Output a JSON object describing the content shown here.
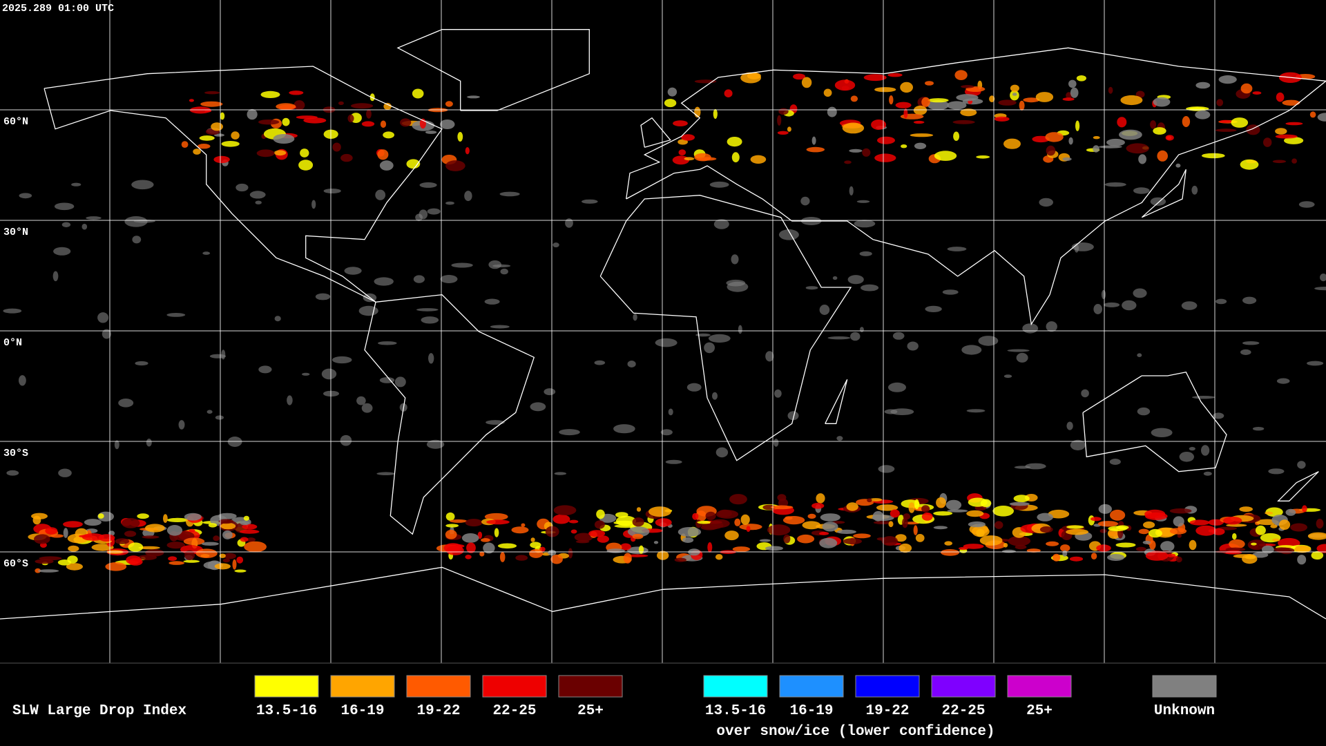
{
  "header": {
    "timestamp": "2025.289 01:00 UTC"
  },
  "map": {
    "lat_labels": [
      "60°N",
      "30°N",
      "0°N",
      "30°S",
      "60°S"
    ]
  },
  "legend": {
    "title": "SLW Large Drop Index",
    "items": [
      {
        "label": "13.5-16",
        "color": "#ffff00"
      },
      {
        "label": "16-19",
        "color": "#ffa500"
      },
      {
        "label": "19-22",
        "color": "#ff5a00"
      },
      {
        "label": "22-25",
        "color": "#ee0000"
      },
      {
        "label": "25+",
        "color": "#6a0000"
      }
    ],
    "snow_items": [
      {
        "label": "13.5-16",
        "color": "#00ffff"
      },
      {
        "label": "16-19",
        "color": "#1e90ff"
      },
      {
        "label": "19-22",
        "color": "#0000ff"
      },
      {
        "label": "22-25",
        "color": "#7f00ff"
      },
      {
        "label": "25+",
        "color": "#cc00cc"
      }
    ],
    "snow_caption": "over snow/ice (lower confidence)",
    "unknown": {
      "label": "Unknown",
      "color": "#808080"
    }
  }
}
